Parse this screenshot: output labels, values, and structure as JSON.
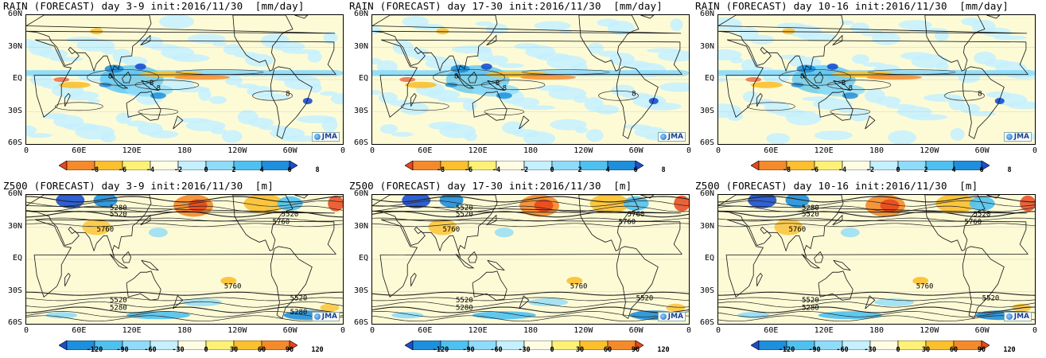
{
  "lat_labels": [
    "60N",
    "30N",
    "EQ",
    "30S",
    "60S"
  ],
  "lon_labels": [
    "0",
    "60E",
    "120E",
    "180",
    "120W",
    "60W",
    "0"
  ],
  "logo_text": "JMA",
  "rain_colorbar": {
    "ticks": [
      "-8",
      "-6",
      "-4",
      "-2",
      "0",
      "2",
      "4",
      "6",
      "8"
    ],
    "colors": [
      "#e8471c",
      "#f58a2b",
      "#fbc02d",
      "#fff176",
      "#fefde3",
      "#c4f0ff",
      "#8fdcf9",
      "#4fc1f0",
      "#1e8fdc",
      "#1a4fd0"
    ]
  },
  "z500_colorbar": {
    "ticks": [
      "-120",
      "-90",
      "-60",
      "-30",
      "0",
      "30",
      "60",
      "90",
      "120"
    ],
    "colors": [
      "#1a4fd0",
      "#1e8fdc",
      "#4fc1f0",
      "#8fdcf9",
      "#c4f0ff",
      "#fefde3",
      "#fff176",
      "#fbc02d",
      "#f58a2b",
      "#e8471c"
    ]
  },
  "panels": [
    {
      "title": "RAIN (FORECAST) day 3-9 init:2016/11/30  [mm/day]",
      "type": "rain",
      "contour_labels": [
        "8",
        "8",
        "8",
        "8"
      ]
    },
    {
      "title": "RAIN (FORECAST) day 17-30 init:2016/11/30  [mm/day]",
      "type": "rain",
      "contour_labels": [
        "8",
        "8",
        "8",
        "8"
      ]
    },
    {
      "title": "RAIN (FORECAST) day 10-16 init:2016/11/30  [mm/day]",
      "type": "rain",
      "contour_labels": [
        "8",
        "8",
        "8",
        "8"
      ]
    },
    {
      "title": "Z500 (FORECAST) day 3-9 init:2016/11/30  [m]",
      "type": "z500",
      "contour_labels": [
        "5280",
        "5520",
        "5520",
        "5760",
        "5760",
        "5760",
        "5520",
        "5280",
        "5520",
        "5280"
      ]
    },
    {
      "title": "Z500 (FORECAST) day 17-30 init:2016/11/30  [m]",
      "type": "z500",
      "contour_labels": [
        "5520",
        "5520",
        "5760",
        "5760",
        "5760",
        "5760",
        "5520",
        "5280",
        "5520"
      ]
    },
    {
      "title": "Z500 (FORECAST) day 10-16 init:2016/11/30  [m]",
      "type": "z500",
      "contour_labels": [
        "5280",
        "5520",
        "5520",
        "5760",
        "5760",
        "5760",
        "5520",
        "5280",
        "5520"
      ]
    }
  ]
}
